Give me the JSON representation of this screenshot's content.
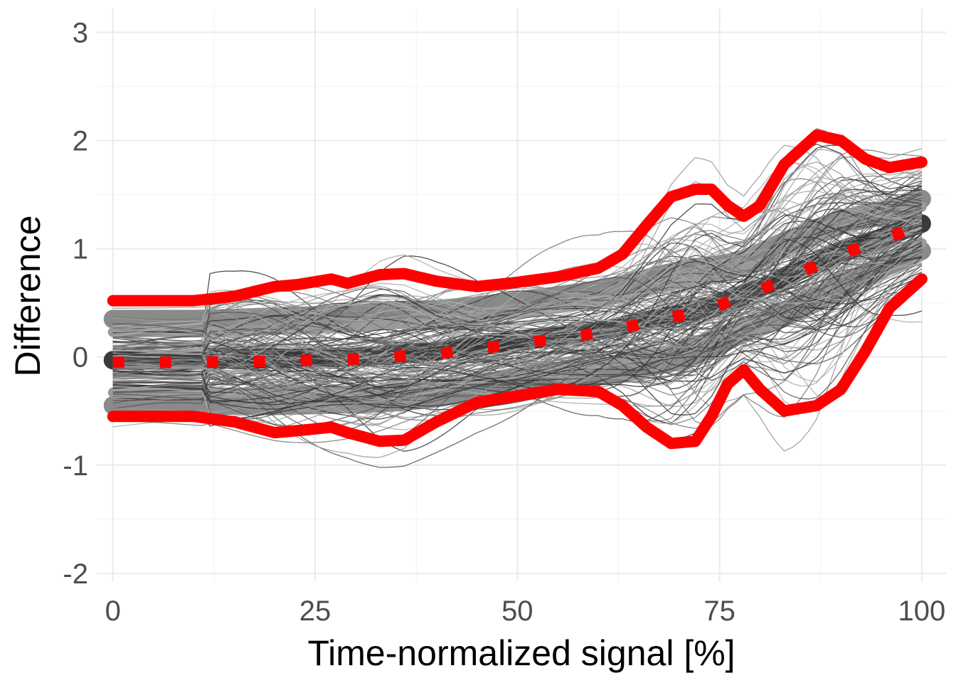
{
  "chart_data": {
    "type": "line",
    "xlabel": "Time-normalized signal [%]",
    "ylabel": "Difference",
    "xlim": [
      -2,
      103
    ],
    "ylim": [
      -2.08,
      3.22
    ],
    "x_ticks": [
      0,
      25,
      50,
      75,
      100
    ],
    "x_tick_labels": [
      "0",
      "25",
      "50",
      "75",
      "100"
    ],
    "y_ticks": [
      -2,
      -1,
      0,
      1,
      2,
      3
    ],
    "y_tick_labels": [
      "-2",
      "-1",
      "0",
      "1",
      "2",
      "3"
    ],
    "grid": true,
    "colors": {
      "curves": [
        "#333333",
        "#555555",
        "#777777",
        "#999999",
        "#aaaaaa"
      ],
      "bands": "#808080",
      "band_dark": "#3a3a3a",
      "interval": "#ff0000"
    },
    "series": [
      {
        "style": "dotted",
        "x": [
          0,
          10,
          20,
          30,
          40,
          50,
          60,
          65,
          70,
          75,
          80,
          85,
          90,
          95,
          100
        ],
        "values": [
          -0.05,
          -0.05,
          -0.04,
          -0.02,
          0.03,
          0.12,
          0.22,
          0.3,
          0.38,
          0.48,
          0.62,
          0.78,
          0.95,
          1.08,
          1.22
        ]
      },
      {
        "style": "solid",
        "x": [
          0,
          5,
          10,
          15,
          20,
          23,
          27,
          29,
          33,
          36,
          40,
          45,
          50,
          55,
          60,
          63,
          66,
          69,
          72,
          74,
          76,
          78,
          80,
          83,
          87,
          90,
          93,
          96,
          100
        ],
        "values": [
          0.52,
          0.52,
          0.52,
          0.56,
          0.65,
          0.67,
          0.72,
          0.68,
          0.76,
          0.77,
          0.7,
          0.65,
          0.69,
          0.74,
          0.82,
          0.95,
          1.22,
          1.48,
          1.55,
          1.55,
          1.4,
          1.3,
          1.4,
          1.78,
          2.05,
          2.0,
          1.83,
          1.75,
          1.8
        ]
      },
      {
        "style": "solid",
        "x": [
          0,
          5,
          10,
          15,
          20,
          23,
          27,
          29,
          33,
          36,
          40,
          45,
          50,
          55,
          60,
          63,
          66,
          69,
          72,
          74,
          76,
          78,
          80,
          83,
          87,
          90,
          93,
          96,
          100
        ],
        "values": [
          -0.55,
          -0.55,
          -0.55,
          -0.6,
          -0.7,
          -0.68,
          -0.65,
          -0.7,
          -0.78,
          -0.77,
          -0.6,
          -0.42,
          -0.36,
          -0.3,
          -0.32,
          -0.45,
          -0.65,
          -0.8,
          -0.78,
          -0.55,
          -0.25,
          -0.12,
          -0.3,
          -0.5,
          -0.45,
          -0.3,
          0.05,
          0.45,
          0.72
        ]
      }
    ]
  }
}
